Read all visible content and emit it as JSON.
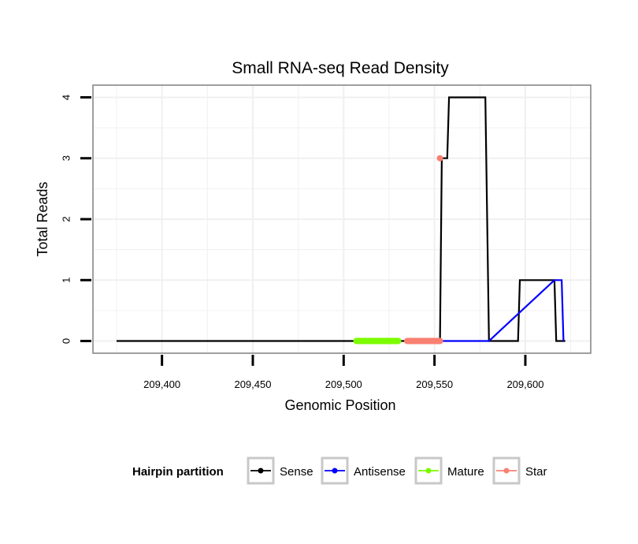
{
  "chart_data": {
    "type": "line",
    "title": "Small RNA-seq Read Density",
    "xlabel": "Genomic Position",
    "ylabel": "Total Reads",
    "xlim": [
      209362,
      209636
    ],
    "ylim": [
      -0.2,
      4.2
    ],
    "x_ticks": [
      209400,
      209450,
      209500,
      209550,
      209600
    ],
    "x_tick_labels": [
      "209,400",
      "209,450",
      "209,500",
      "209,550",
      "209,600"
    ],
    "y_ticks": [
      0,
      1,
      2,
      3,
      4
    ],
    "y_tick_labels": [
      "0",
      "1",
      "2",
      "3",
      "4"
    ],
    "grid": true,
    "legend": {
      "title": "Hairpin partition",
      "placement": "bottom",
      "entries": [
        "Sense",
        "Antisense",
        "Mature",
        "Star"
      ]
    },
    "series": [
      {
        "name": "Sense",
        "color": "#000000",
        "x": [
          209375,
          209553,
          209554,
          209557,
          209558,
          209578,
          209580,
          209596,
          209597,
          209616,
          209617,
          209622
        ],
        "y": [
          0,
          0,
          3,
          3,
          4,
          4,
          0,
          0,
          1,
          1,
          0,
          0
        ]
      },
      {
        "name": "Antisense",
        "color": "#0000ff",
        "x": [
          209553,
          209580,
          209616,
          209617,
          209620,
          209621
        ],
        "y": [
          0,
          0,
          1,
          1,
          1,
          0
        ]
      },
      {
        "name": "Mature",
        "color": "#7cfc00",
        "x": [
          209507,
          209530
        ],
        "y": [
          0,
          0
        ]
      },
      {
        "name": "Star",
        "color": "#fa8072",
        "x": [
          209535,
          209553
        ],
        "y": [
          0,
          0
        ],
        "points": [
          {
            "x": 209553,
            "y": 3
          }
        ]
      }
    ]
  }
}
